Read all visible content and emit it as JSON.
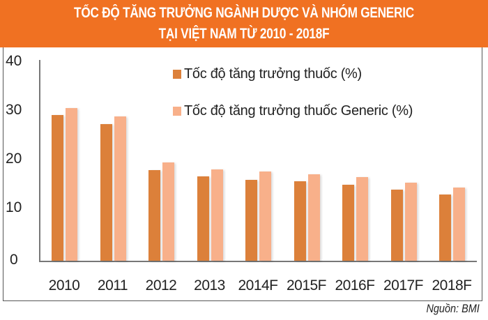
{
  "header": {
    "title_line1": "TỐC ĐỘ TĂNG TRƯỞNG NGÀNH DƯỢC VÀ NHÓM GENERIC",
    "title_line2": "TẠI VIỆT NAM TỪ 2010 - 2018F"
  },
  "legend": {
    "series1": "Tốc độ tăng trưởng thuốc (%)",
    "series2": "Tốc độ tăng trưởng thuốc Generic (%)"
  },
  "yaxis": {
    "ticks": [
      "40",
      "30",
      "20",
      "10",
      "0"
    ]
  },
  "source": "Nguồn: BMI",
  "colors": {
    "header_bg": "#f07122",
    "series1": "#dc803a",
    "series2": "#f8b08a"
  },
  "chart_data": {
    "type": "bar",
    "title": "TỐC ĐỘ TĂNG TRƯỞNG NGÀNH DƯỢC VÀ NHÓM GENERIC TẠI VIỆT NAM TỪ 2010 - 2018F",
    "categories": [
      "2010",
      "2011",
      "2012",
      "2013",
      "2014F",
      "2015F",
      "2016F",
      "2017F",
      "2018F"
    ],
    "series": [
      {
        "name": "Tốc độ tăng trưởng thuốc (%)",
        "color": "#dc803a",
        "values": [
          29.2,
          27.4,
          18.2,
          16.9,
          16.2,
          15.9,
          15.2,
          14.3,
          13.3
        ]
      },
      {
        "name": "Tốc độ tăng trưởng thuốc Generic (%)",
        "color": "#f8b08a",
        "values": [
          30.6,
          29.0,
          19.7,
          18.3,
          17.9,
          17.3,
          16.8,
          15.7,
          14.7
        ]
      }
    ],
    "xlabel": "",
    "ylabel": "",
    "ylim": [
      0,
      40
    ],
    "yticks": [
      0,
      10,
      20,
      30,
      40
    ],
    "grid": false,
    "legend_position": "top-right inside",
    "source": "Nguồn: BMI"
  }
}
